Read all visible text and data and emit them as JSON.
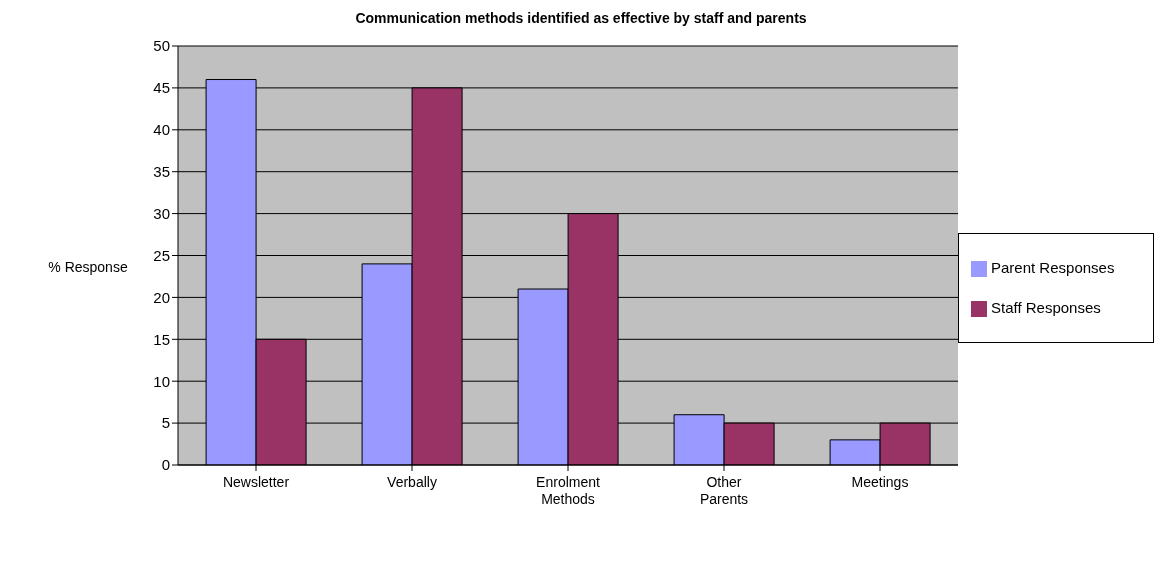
{
  "chart_data": {
    "type": "bar",
    "title": "Communication methods identified as effective by staff and parents",
    "ylabel": "% Response",
    "categories": [
      "Newsletter",
      "Verbally",
      "Enrolment Methods",
      "Other Parents",
      "Meetings"
    ],
    "series": [
      {
        "name": "Parent Responses",
        "color": "#9999ff",
        "values": [
          46,
          24,
          21,
          6,
          3
        ]
      },
      {
        "name": "Staff Responses",
        "color": "#993366",
        "values": [
          15,
          45,
          30,
          5,
          5
        ]
      }
    ],
    "ylim": [
      0,
      50
    ],
    "yticks": [
      0,
      5,
      10,
      15,
      20,
      25,
      30,
      35,
      40,
      45,
      50
    ],
    "grid": "y",
    "legend": "right"
  }
}
